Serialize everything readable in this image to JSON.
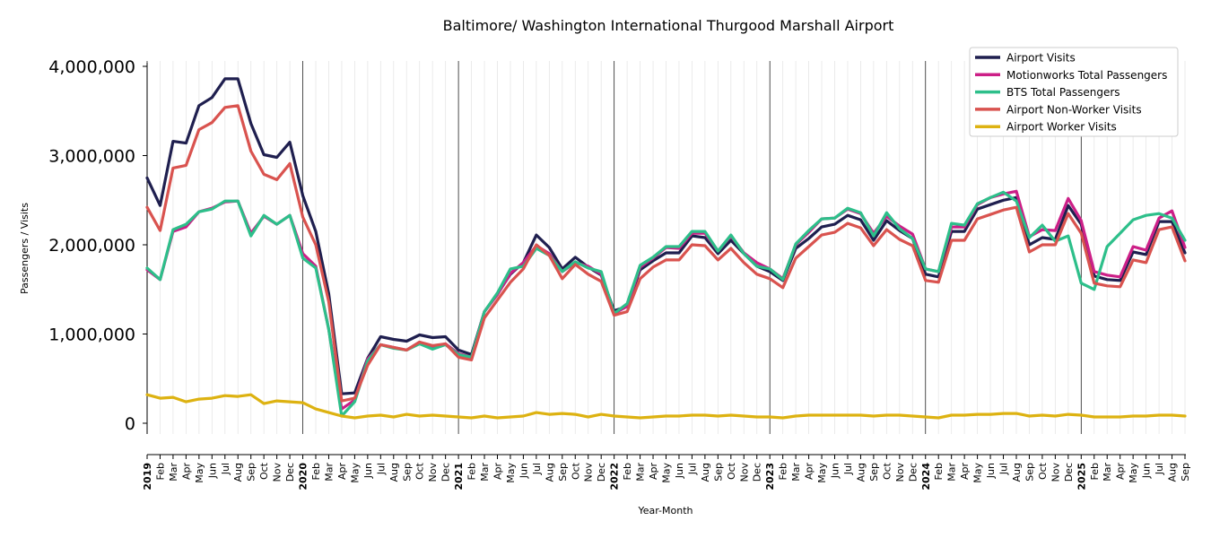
{
  "chart_data": {
    "type": "line",
    "title": "Baltimore/ Washington International Thurgood Marshall Airport",
    "xlabel": "Year-Month",
    "ylabel": "Passengers / Visits",
    "ylim": [
      -120000,
      4050000
    ],
    "yticks": [
      0,
      1000000,
      2000000,
      3000000,
      4000000
    ],
    "ytick_labels": [
      "0",
      "1,000,000",
      "2,000,000",
      "3,000,000",
      "4,000,000"
    ],
    "grid": "vertical monthly lines",
    "legend_position": "top-right",
    "x": [
      "2019",
      "Feb",
      "Mar",
      "Apr",
      "May",
      "Jun",
      "Jul",
      "Aug",
      "Sep",
      "Oct",
      "Nov",
      "Dec",
      "2020",
      "Feb",
      "Mar",
      "Apr",
      "May",
      "Jun",
      "Jul",
      "Aug",
      "Sep",
      "Oct",
      "Nov",
      "Dec",
      "2021",
      "Feb",
      "Mar",
      "Apr",
      "May",
      "Jun",
      "Jul",
      "Aug",
      "Sep",
      "Oct",
      "Nov",
      "Dec",
      "2022",
      "Feb",
      "Mar",
      "Apr",
      "May",
      "Jun",
      "Jul",
      "Aug",
      "Sep",
      "Oct",
      "Nov",
      "Dec",
      "2023",
      "Feb",
      "Mar",
      "Apr",
      "May",
      "Jun",
      "Jul",
      "Aug",
      "Sep",
      "Oct",
      "Nov",
      "Dec",
      "2024",
      "Feb",
      "Mar",
      "Apr",
      "May",
      "Jun",
      "Jul",
      "Aug",
      "Sep",
      "Oct",
      "Nov",
      "Dec",
      "2025",
      "Feb",
      "Mar",
      "Apr",
      "May",
      "Jun",
      "Jul",
      "Aug",
      "Sep"
    ],
    "year_labels": [
      "2019",
      "2020",
      "2021",
      "2022",
      "2023",
      "2024",
      "2025"
    ],
    "series": [
      {
        "name": "Airport Visits",
        "color": "#1f1f4f",
        "values": [
          2750000,
          2440000,
          3160000,
          3140000,
          3560000,
          3650000,
          3860000,
          3860000,
          3360000,
          3010000,
          2980000,
          3150000,
          2550000,
          2150000,
          1450000,
          330000,
          340000,
          730000,
          970000,
          940000,
          920000,
          990000,
          960000,
          970000,
          820000,
          770000,
          1250000,
          1450000,
          1670000,
          1800000,
          2110000,
          1970000,
          1730000,
          1860000,
          1750000,
          1660000,
          1260000,
          1310000,
          1720000,
          1820000,
          1910000,
          1910000,
          2100000,
          2080000,
          1900000,
          2050000,
          1900000,
          1760000,
          1700000,
          1600000,
          1960000,
          2070000,
          2200000,
          2230000,
          2330000,
          2280000,
          2050000,
          2270000,
          2160000,
          2070000,
          1670000,
          1640000,
          2150000,
          2150000,
          2400000,
          2450000,
          2500000,
          2530000,
          2000000,
          2080000,
          2060000,
          2440000,
          2230000,
          1650000,
          1610000,
          1600000,
          1920000,
          1890000,
          2260000,
          2260000,
          1910000
        ]
      },
      {
        "name": "Motionworks Total Passengers",
        "color": "#cc1f87",
        "values": [
          1720000,
          1610000,
          2150000,
          2200000,
          2370000,
          2410000,
          2480000,
          2490000,
          2130000,
          2320000,
          2230000,
          2330000,
          1900000,
          1760000,
          1050000,
          160000,
          260000,
          720000,
          880000,
          850000,
          820000,
          910000,
          850000,
          890000,
          780000,
          740000,
          1250000,
          1440000,
          1680000,
          1800000,
          1990000,
          1900000,
          1700000,
          1800000,
          1760000,
          1670000,
          1230000,
          1310000,
          1750000,
          1850000,
          1970000,
          1960000,
          2130000,
          2130000,
          1930000,
          2100000,
          1910000,
          1800000,
          1730000,
          1620000,
          2000000,
          2140000,
          2290000,
          2300000,
          2400000,
          2350000,
          2130000,
          2320000,
          2210000,
          2120000,
          1730000,
          1700000,
          2200000,
          2200000,
          2450000,
          2530000,
          2570000,
          2600000,
          2090000,
          2170000,
          2160000,
          2520000,
          2270000,
          1700000,
          1660000,
          1640000,
          1980000,
          1940000,
          2300000,
          2380000,
          1970000
        ]
      },
      {
        "name": "BTS Total Passengers",
        "color": "#2dbf8a",
        "values": [
          1740000,
          1610000,
          2170000,
          2230000,
          2370000,
          2400000,
          2490000,
          2490000,
          2100000,
          2330000,
          2230000,
          2330000,
          1850000,
          1740000,
          1050000,
          80000,
          240000,
          700000,
          880000,
          840000,
          820000,
          890000,
          830000,
          880000,
          770000,
          740000,
          1250000,
          1460000,
          1730000,
          1760000,
          1960000,
          1880000,
          1700000,
          1810000,
          1740000,
          1700000,
          1230000,
          1340000,
          1770000,
          1860000,
          1980000,
          1980000,
          2150000,
          2150000,
          1930000,
          2110000,
          1900000,
          1760000,
          1730000,
          1610000,
          2010000,
          2160000,
          2290000,
          2300000,
          2410000,
          2360000,
          2100000,
          2360000,
          2180000,
          2070000,
          1730000,
          1700000,
          2240000,
          2220000,
          2460000,
          2530000,
          2590000,
          2490000,
          2080000,
          2220000,
          2040000,
          2100000,
          1570000,
          1500000,
          1980000,
          2130000,
          2280000,
          2330000,
          2350000,
          2300000,
          2050000
        ]
      },
      {
        "name": "Airport Non-Worker Visits",
        "color": "#d9534f",
        "values": [
          2420000,
          2160000,
          2860000,
          2890000,
          3290000,
          3370000,
          3540000,
          3560000,
          3050000,
          2790000,
          2730000,
          2910000,
          2310000,
          2000000,
          1360000,
          250000,
          280000,
          650000,
          880000,
          850000,
          820000,
          910000,
          870000,
          890000,
          740000,
          710000,
          1180000,
          1380000,
          1580000,
          1730000,
          2000000,
          1880000,
          1620000,
          1780000,
          1670000,
          1590000,
          1210000,
          1250000,
          1620000,
          1750000,
          1830000,
          1830000,
          2000000,
          1990000,
          1830000,
          1960000,
          1800000,
          1670000,
          1620000,
          1520000,
          1850000,
          1980000,
          2110000,
          2140000,
          2240000,
          2190000,
          1990000,
          2170000,
          2060000,
          1990000,
          1600000,
          1580000,
          2050000,
          2050000,
          2290000,
          2340000,
          2390000,
          2420000,
          1920000,
          2000000,
          2000000,
          2350000,
          2130000,
          1570000,
          1540000,
          1530000,
          1830000,
          1800000,
          2170000,
          2200000,
          1820000
        ]
      },
      {
        "name": "Airport Worker Visits",
        "color": "#ddb211",
        "values": [
          320000,
          280000,
          290000,
          240000,
          270000,
          280000,
          310000,
          300000,
          320000,
          220000,
          250000,
          240000,
          230000,
          160000,
          120000,
          80000,
          60000,
          80000,
          90000,
          70000,
          100000,
          80000,
          90000,
          80000,
          70000,
          60000,
          80000,
          60000,
          70000,
          80000,
          120000,
          100000,
          110000,
          100000,
          70000,
          100000,
          80000,
          70000,
          60000,
          70000,
          80000,
          80000,
          90000,
          90000,
          80000,
          90000,
          80000,
          70000,
          70000,
          60000,
          80000,
          90000,
          90000,
          90000,
          90000,
          90000,
          80000,
          90000,
          90000,
          80000,
          70000,
          60000,
          90000,
          90000,
          100000,
          100000,
          110000,
          110000,
          80000,
          90000,
          80000,
          100000,
          90000,
          70000,
          70000,
          70000,
          80000,
          80000,
          90000,
          90000,
          80000
        ]
      }
    ]
  }
}
